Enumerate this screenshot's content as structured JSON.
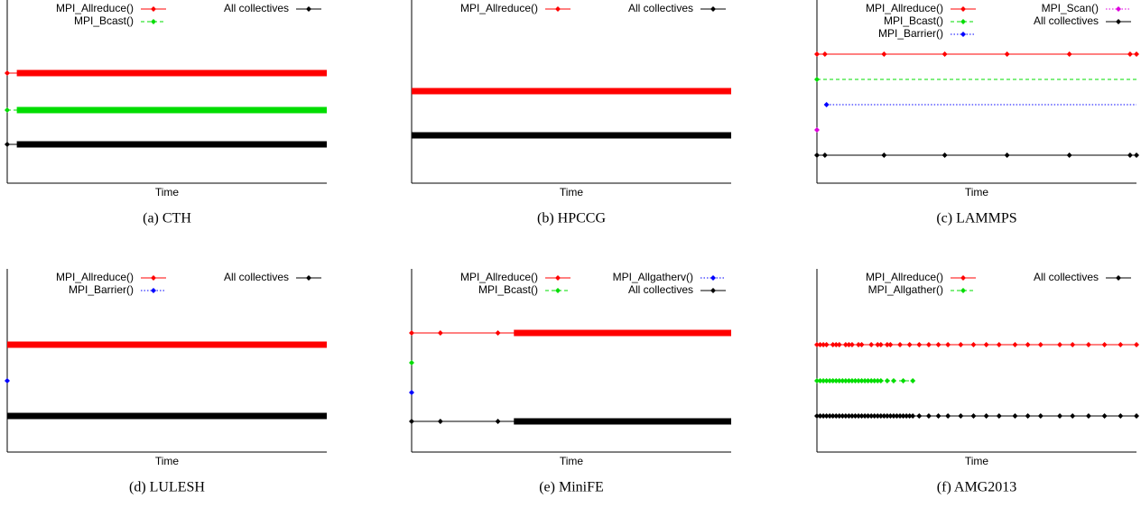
{
  "chart_data": [
    {
      "type": "timeline",
      "caption": "(a) CTH",
      "xlabel": "Time",
      "xlim": [
        0,
        100
      ],
      "series": [
        {
          "name": "MPI_Allreduce()",
          "color": "#ff0000",
          "style": "solid",
          "x": [
            0
          ],
          "dense": [
            [
              3,
              100
            ]
          ]
        },
        {
          "name": "MPI_Bcast()",
          "color": "#00dd00",
          "style": "dashed",
          "x": [
            0
          ],
          "dense": [
            [
              3,
              100
            ]
          ]
        },
        {
          "name": "All collectives",
          "color": "#000000",
          "style": "solid",
          "x": [
            0
          ],
          "dense": [
            [
              3,
              100
            ]
          ]
        }
      ]
    },
    {
      "type": "timeline",
      "caption": "(b) HPCCG",
      "xlabel": "Time",
      "xlim": [
        0,
        100
      ],
      "series": [
        {
          "name": "MPI_Allreduce()",
          "color": "#ff0000",
          "style": "solid",
          "x": [],
          "dense": [
            [
              0,
              100
            ]
          ]
        },
        {
          "name": "All collectives",
          "color": "#000000",
          "style": "solid",
          "x": [],
          "dense": [
            [
              0,
              100
            ]
          ]
        }
      ]
    },
    {
      "type": "timeline",
      "caption": "(c) LAMMPS",
      "xlabel": "Time",
      "xlim": [
        0,
        100
      ],
      "series": [
        {
          "name": "MPI_Allreduce()",
          "color": "#ff0000",
          "style": "solid",
          "x": [
            0,
            2.5,
            21,
            40,
            59.5,
            79,
            98,
            100
          ],
          "dense": []
        },
        {
          "name": "MPI_Bcast()",
          "color": "#00dd00",
          "style": "dashed",
          "x": [
            0
          ],
          "dense": [],
          "extend": true
        },
        {
          "name": "MPI_Barrier()",
          "color": "#0000ff",
          "style": "dotted",
          "x": [
            3
          ],
          "dense": [],
          "extend": true
        },
        {
          "name": "MPI_Scan()",
          "color": "#dd00dd",
          "style": "dotted",
          "x": [
            0
          ],
          "dense": []
        },
        {
          "name": "All collectives",
          "color": "#000000",
          "style": "solid",
          "x": [
            0,
            2.5,
            21,
            40,
            59.5,
            79,
            98,
            100
          ],
          "dense": []
        }
      ]
    },
    {
      "type": "timeline",
      "caption": "(d) LULESH",
      "xlabel": "Time",
      "xlim": [
        0,
        100
      ],
      "series": [
        {
          "name": "MPI_Allreduce()",
          "color": "#ff0000",
          "style": "solid",
          "x": [],
          "dense": [
            [
              0,
              100
            ]
          ]
        },
        {
          "name": "MPI_Barrier()",
          "color": "#0000ff",
          "style": "dotted",
          "x": [
            0
          ],
          "dense": []
        },
        {
          "name": "All collectives",
          "color": "#000000",
          "style": "solid",
          "x": [],
          "dense": [
            [
              0,
              100
            ]
          ]
        }
      ]
    },
    {
      "type": "timeline",
      "caption": "(e) MiniFE",
      "xlabel": "Time",
      "xlim": [
        0,
        100
      ],
      "series": [
        {
          "name": "MPI_Allreduce()",
          "color": "#ff0000",
          "style": "solid",
          "x": [
            0,
            9,
            27
          ],
          "dense": [
            [
              32,
              100
            ]
          ]
        },
        {
          "name": "MPI_Bcast()",
          "color": "#00dd00",
          "style": "dashed",
          "x": [
            0
          ],
          "dense": []
        },
        {
          "name": "MPI_Allgatherv()",
          "color": "#0000ff",
          "style": "dotted",
          "x": [
            0
          ],
          "dense": []
        },
        {
          "name": "All collectives",
          "color": "#000000",
          "style": "solid",
          "x": [
            0,
            9,
            27
          ],
          "dense": [
            [
              32,
              100
            ]
          ]
        }
      ]
    },
    {
      "type": "timeline",
      "caption": "(f) AMG2013",
      "xlabel": "Time",
      "xlim": [
        0,
        100
      ],
      "series": [
        {
          "name": "MPI_Allreduce()",
          "color": "#ff0000",
          "style": "solid",
          "x": [
            0,
            1,
            2,
            3,
            5,
            6,
            7,
            9,
            10,
            11,
            13,
            14,
            17,
            19,
            20,
            22,
            23,
            26,
            29,
            32,
            35,
            38,
            41,
            45,
            49,
            53,
            57,
            62,
            66,
            70,
            76,
            80,
            85,
            90,
            95,
            100
          ],
          "dense": []
        },
        {
          "name": "MPI_Allgather()",
          "color": "#00dd00",
          "style": "dashed",
          "x": [
            0,
            1,
            2,
            3,
            4,
            5,
            6,
            7,
            8,
            9,
            10,
            11,
            12,
            13,
            14,
            15,
            16,
            17,
            18,
            19,
            20,
            22,
            24,
            27,
            30
          ],
          "dense": []
        },
        {
          "name": "All collectives",
          "color": "#000000",
          "style": "solid",
          "x": [
            0,
            1,
            2,
            3,
            4,
            5,
            6,
            7,
            8,
            9,
            10,
            11,
            12,
            13,
            14,
            15,
            16,
            17,
            18,
            19,
            20,
            21,
            22,
            23,
            24,
            25,
            26,
            27,
            28,
            29,
            30,
            32,
            35,
            38,
            41,
            45,
            49,
            53,
            57,
            62,
            66,
            70,
            76,
            80,
            85,
            90,
            95,
            100
          ],
          "dense": []
        }
      ]
    }
  ]
}
